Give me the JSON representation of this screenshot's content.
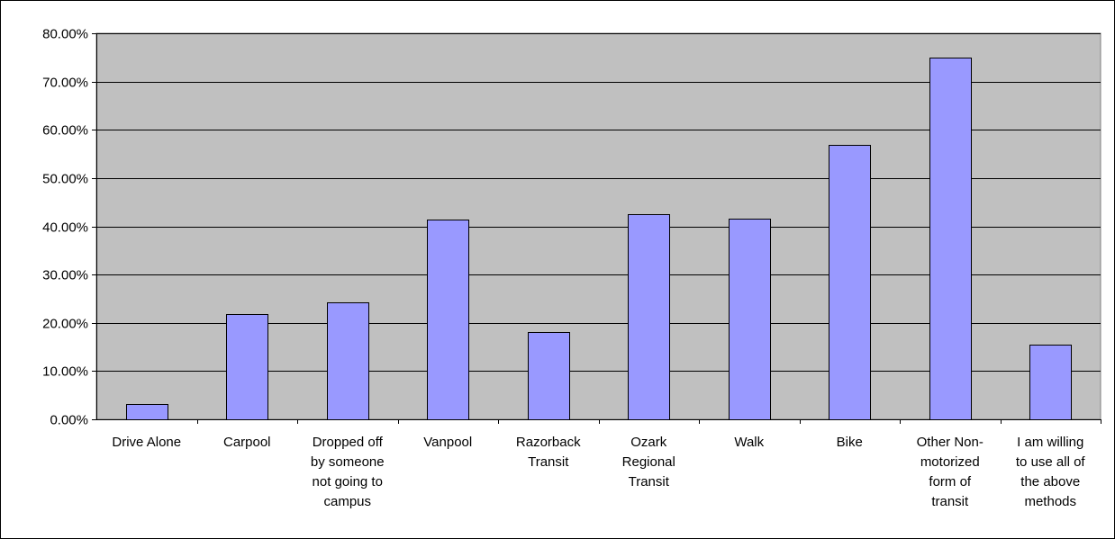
{
  "chart_data": {
    "type": "bar",
    "title": "",
    "xlabel": "",
    "ylabel": "",
    "ylim": [
      0,
      80
    ],
    "y_ticks": [
      "0.00%",
      "10.00%",
      "20.00%",
      "30.00%",
      "40.00%",
      "50.00%",
      "60.00%",
      "70.00%",
      "80.00%"
    ],
    "grid": true,
    "legend": "none",
    "colors": {
      "plot_background": "#c0c0c0",
      "bar_fill": "#9999ff",
      "bar_stroke": "#000000",
      "gridline": "#000000"
    },
    "categories": [
      [
        "Drive Alone"
      ],
      [
        "Carpool"
      ],
      [
        "Dropped off",
        "by someone",
        "not going to",
        "campus"
      ],
      [
        "Vanpool"
      ],
      [
        "Razorback",
        "Transit"
      ],
      [
        "Ozark",
        "Regional",
        "Transit"
      ],
      [
        "Walk"
      ],
      [
        "Bike"
      ],
      [
        "Other Non-",
        "motorized",
        "form of",
        "transit"
      ],
      [
        "I am willing",
        "to use all of",
        "the above",
        "methods"
      ]
    ],
    "series": [
      {
        "values": [
          3.1,
          21.8,
          24.2,
          41.4,
          18.0,
          42.5,
          41.6,
          56.8,
          75.0,
          15.5
        ]
      }
    ]
  }
}
